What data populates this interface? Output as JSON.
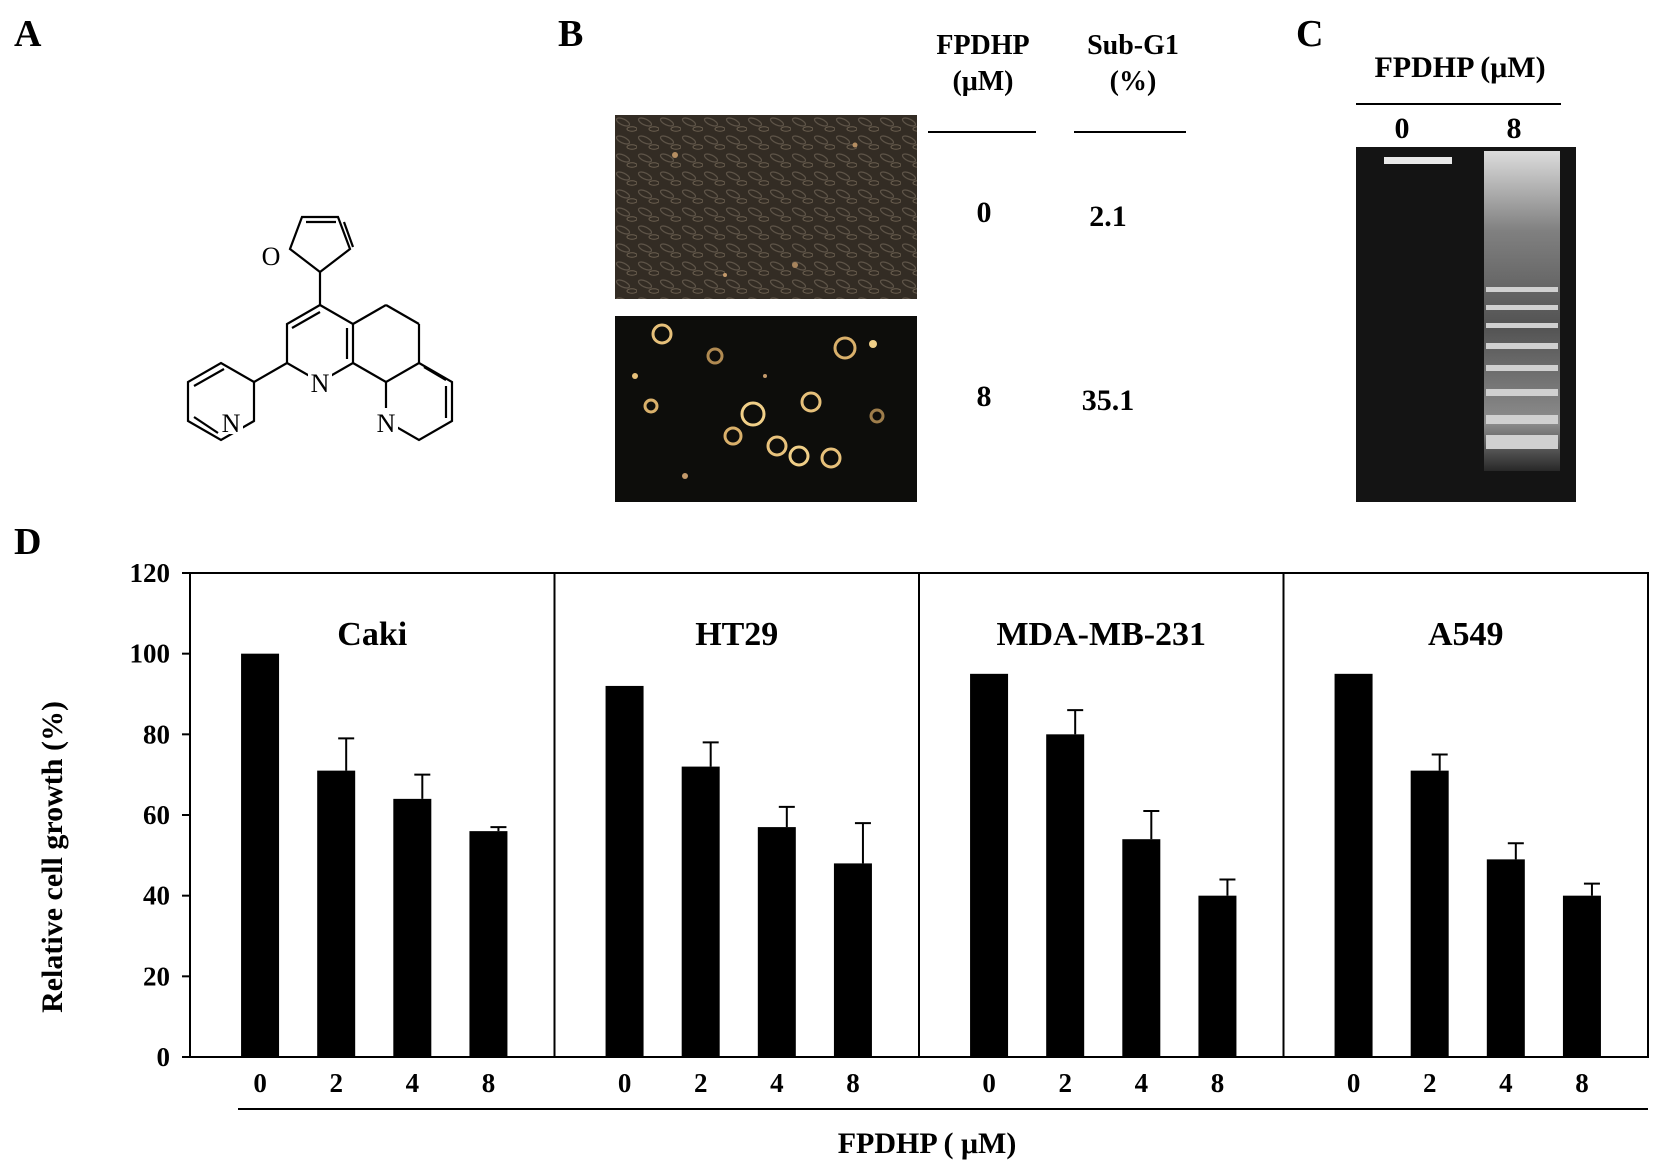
{
  "panels": {
    "a": {
      "letter": "A",
      "atom_labels": [
        "O",
        "N",
        "N",
        "N"
      ]
    },
    "b": {
      "letter": "B",
      "col1_header": [
        "FPDHP",
        "(μM)"
      ],
      "col2_header": [
        "Sub-G1",
        "(%)"
      ],
      "rows": [
        {
          "dose": "0",
          "subg1": "2.1"
        },
        {
          "dose": "8",
          "subg1": "35.1"
        }
      ]
    },
    "c": {
      "letter": "C",
      "header": "FPDHP (μM)",
      "lanes": [
        "0",
        "8"
      ]
    },
    "d": {
      "letter": "D"
    }
  },
  "chart_data": {
    "type": "bar",
    "ylabel": "Relative cell growth (%)",
    "xlabel": "FPDHP ( μM)",
    "ylim": [
      0,
      120
    ],
    "yticks": [
      0,
      20,
      40,
      60,
      80,
      100,
      120
    ],
    "categories": [
      "0",
      "2",
      "4",
      "8"
    ],
    "bar_color": "#000000",
    "groups": [
      {
        "name": "Caki",
        "values": [
          100,
          71,
          64,
          56
        ],
        "errors": [
          0,
          8,
          6,
          1
        ]
      },
      {
        "name": "HT29",
        "values": [
          92,
          72,
          57,
          48
        ],
        "errors": [
          0,
          6,
          5,
          10
        ]
      },
      {
        "name": "MDA-MB-231",
        "values": [
          95,
          80,
          54,
          40
        ],
        "errors": [
          0,
          6,
          7,
          4
        ]
      },
      {
        "name": "A549",
        "values": [
          95,
          71,
          49,
          40
        ],
        "errors": [
          0,
          4,
          4,
          3
        ]
      }
    ]
  }
}
